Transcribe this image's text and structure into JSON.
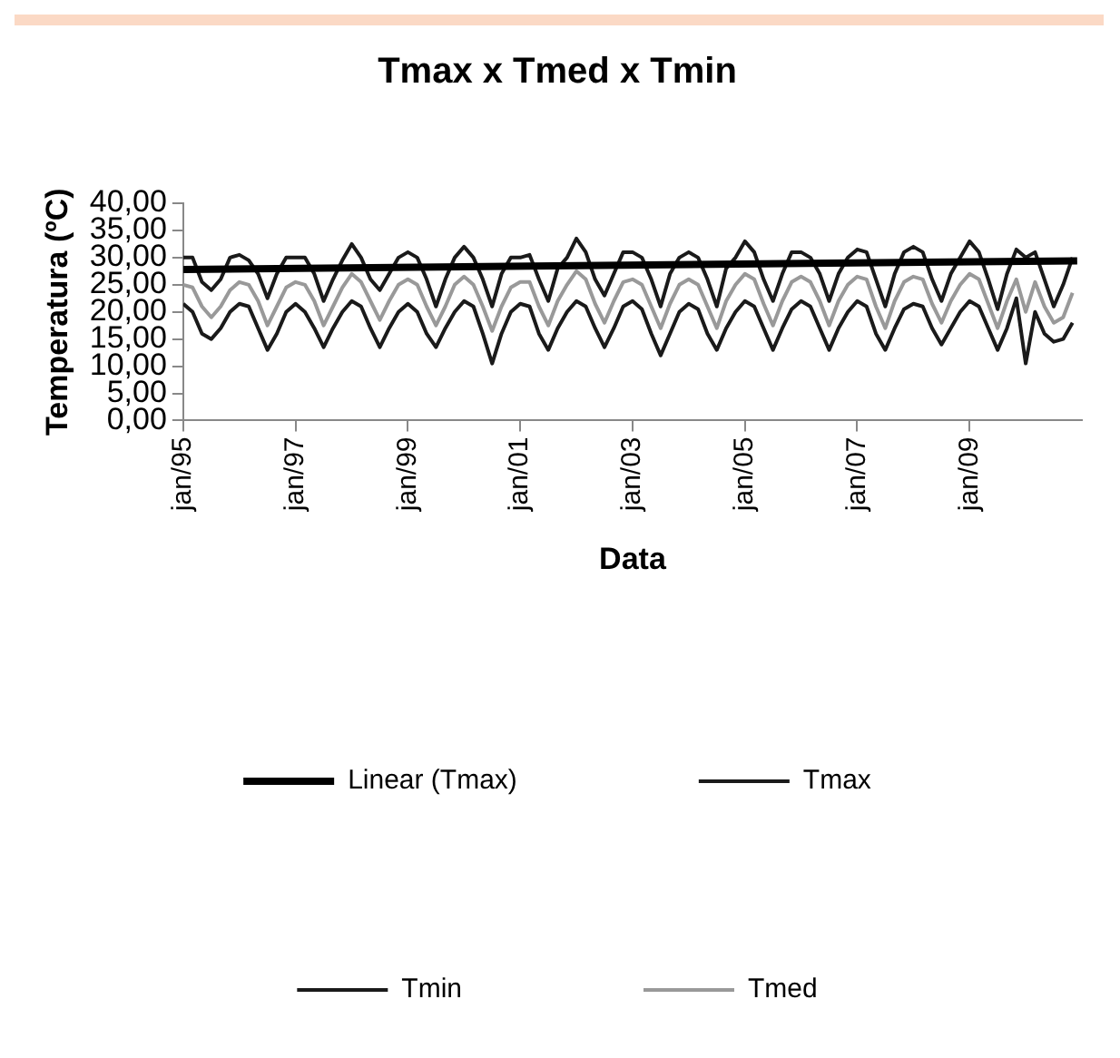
{
  "chart_data": {
    "type": "line",
    "title": "Tmax x Tmed x Tmin",
    "xlabel": "Data",
    "ylabel": "Temperatura (ºC)",
    "x": [
      "1995-01",
      "1995-03",
      "1995-05",
      "1995-07",
      "1995-09",
      "1995-11",
      "1996-01",
      "1996-03",
      "1996-05",
      "1996-07",
      "1996-09",
      "1996-11",
      "1997-01",
      "1997-03",
      "1997-05",
      "1997-07",
      "1997-09",
      "1997-11",
      "1998-01",
      "1998-03",
      "1998-05",
      "1998-07",
      "1998-09",
      "1998-11",
      "1999-01",
      "1999-03",
      "1999-05",
      "1999-07",
      "1999-09",
      "1999-11",
      "2000-01",
      "2000-03",
      "2000-05",
      "2000-07",
      "2000-09",
      "2000-11",
      "2001-01",
      "2001-03",
      "2001-05",
      "2001-07",
      "2001-09",
      "2001-11",
      "2002-01",
      "2002-03",
      "2002-05",
      "2002-07",
      "2002-09",
      "2002-11",
      "2003-01",
      "2003-03",
      "2003-05",
      "2003-07",
      "2003-09",
      "2003-11",
      "2004-01",
      "2004-03",
      "2004-05",
      "2004-07",
      "2004-09",
      "2004-11",
      "2005-01",
      "2005-03",
      "2005-05",
      "2005-07",
      "2005-09",
      "2005-11",
      "2006-01",
      "2006-03",
      "2006-05",
      "2006-07",
      "2006-09",
      "2006-11",
      "2007-01",
      "2007-03",
      "2007-05",
      "2007-07",
      "2007-09",
      "2007-11",
      "2008-01",
      "2008-03",
      "2008-05",
      "2008-07",
      "2008-09",
      "2008-11",
      "2009-01",
      "2009-03",
      "2009-05",
      "2009-07",
      "2009-09",
      "2009-11",
      "2010-01",
      "2010-03",
      "2010-05",
      "2010-07",
      "2010-09",
      "2010-11"
    ],
    "series": [
      {
        "name": "Tmax",
        "color": "#1a1a1a",
        "values": [
          30,
          30,
          25.5,
          24,
          26,
          30,
          30.5,
          29.5,
          27,
          22.5,
          27,
          30,
          30,
          30,
          27,
          22,
          26,
          29.5,
          32.5,
          30,
          26,
          24,
          27,
          30,
          31,
          30,
          26,
          21,
          26,
          30,
          32,
          30,
          26,
          21,
          27,
          30,
          30,
          30.5,
          26,
          22,
          28,
          30,
          33.5,
          31,
          26,
          23,
          27,
          31,
          31,
          30,
          26,
          21,
          27,
          30,
          31,
          30,
          26,
          21,
          28,
          30,
          33,
          31,
          26,
          22,
          27,
          31,
          31,
          30,
          27,
          22,
          27,
          30,
          31.5,
          31,
          26,
          21,
          27,
          31,
          32,
          31,
          26,
          22,
          27,
          30,
          33,
          31,
          26,
          20.5,
          27,
          31.5,
          30,
          31,
          26,
          21,
          25,
          30
        ]
      },
      {
        "name": "Tmin",
        "color": "#1a1a1a",
        "values": [
          21.5,
          20,
          16,
          15,
          17,
          20,
          21.5,
          21,
          17,
          13,
          16,
          20,
          21.5,
          20,
          17,
          13.5,
          17,
          20,
          22,
          21,
          17,
          13.5,
          17,
          20,
          21.5,
          20,
          16,
          13.5,
          17,
          20,
          22,
          21,
          16,
          10.5,
          16,
          20,
          21.5,
          21,
          16,
          13,
          17,
          20,
          22,
          21,
          17,
          13.5,
          17,
          21,
          22,
          20.5,
          16,
          12,
          16,
          20,
          21.5,
          20.5,
          16,
          13,
          17,
          20,
          22,
          21,
          17,
          13,
          17,
          20.5,
          22,
          21,
          17,
          13,
          17,
          20,
          22,
          21,
          16,
          13,
          17,
          20.5,
          21.5,
          21,
          17,
          14,
          17,
          20,
          22,
          21,
          17,
          13,
          17,
          22.5,
          10.5,
          20,
          16,
          14.5,
          15,
          18
        ]
      },
      {
        "name": "Tmed",
        "color": "#999999",
        "values": [
          25,
          24.5,
          21,
          19,
          21,
          24,
          25.5,
          25,
          22,
          17.5,
          21,
          24.5,
          25.5,
          25,
          22,
          17.5,
          21,
          24.5,
          27,
          25.5,
          22,
          18.5,
          22,
          25,
          26,
          25,
          21,
          17.5,
          21,
          25,
          26.5,
          25,
          21,
          16.5,
          21,
          24.5,
          25.5,
          25.5,
          21,
          17.5,
          22,
          25,
          27.5,
          26,
          21.5,
          18,
          22,
          25.5,
          26,
          25,
          21,
          17,
          21.5,
          25,
          26,
          25,
          21,
          17,
          22,
          25,
          27,
          26,
          21.5,
          17.5,
          22,
          25.5,
          26.5,
          25.5,
          22,
          17.5,
          22,
          25,
          26.5,
          26,
          21,
          17,
          22,
          25.5,
          26.5,
          26,
          21.5,
          18,
          22,
          25,
          27,
          26,
          21.5,
          17,
          22,
          26,
          20,
          25.5,
          21,
          18,
          19,
          23.5
        ]
      },
      {
        "name": "Linear (Tmax)",
        "color": "#000000",
        "x": [
          "1995-01",
          "2010-12"
        ],
        "values": [
          27.8,
          29.4
        ]
      }
    ],
    "xlim": [
      "1995-01",
      "2011-01"
    ],
    "xticks": [
      {
        "value": "1995-01",
        "label": "jan/95"
      },
      {
        "value": "1997-01",
        "label": "jan/97"
      },
      {
        "value": "1999-01",
        "label": "jan/99"
      },
      {
        "value": "2001-01",
        "label": "jan/01"
      },
      {
        "value": "2003-01",
        "label": "jan/03"
      },
      {
        "value": "2005-01",
        "label": "jan/05"
      },
      {
        "value": "2007-01",
        "label": "jan/07"
      },
      {
        "value": "2009-01",
        "label": "jan/09"
      }
    ],
    "ylim": [
      0,
      40
    ],
    "yticks": [
      {
        "value": 0,
        "label": "0,00"
      },
      {
        "value": 5,
        "label": "5,00"
      },
      {
        "value": 10,
        "label": "10,00"
      },
      {
        "value": 15,
        "label": "15,00"
      },
      {
        "value": 20,
        "label": "20,00"
      },
      {
        "value": 25,
        "label": "25,00"
      },
      {
        "value": 30,
        "label": "30,00"
      },
      {
        "value": 35,
        "label": "35,00"
      },
      {
        "value": 40,
        "label": "40,00"
      }
    ],
    "legend": "bottom",
    "marker": "none",
    "line_style": "solid"
  }
}
